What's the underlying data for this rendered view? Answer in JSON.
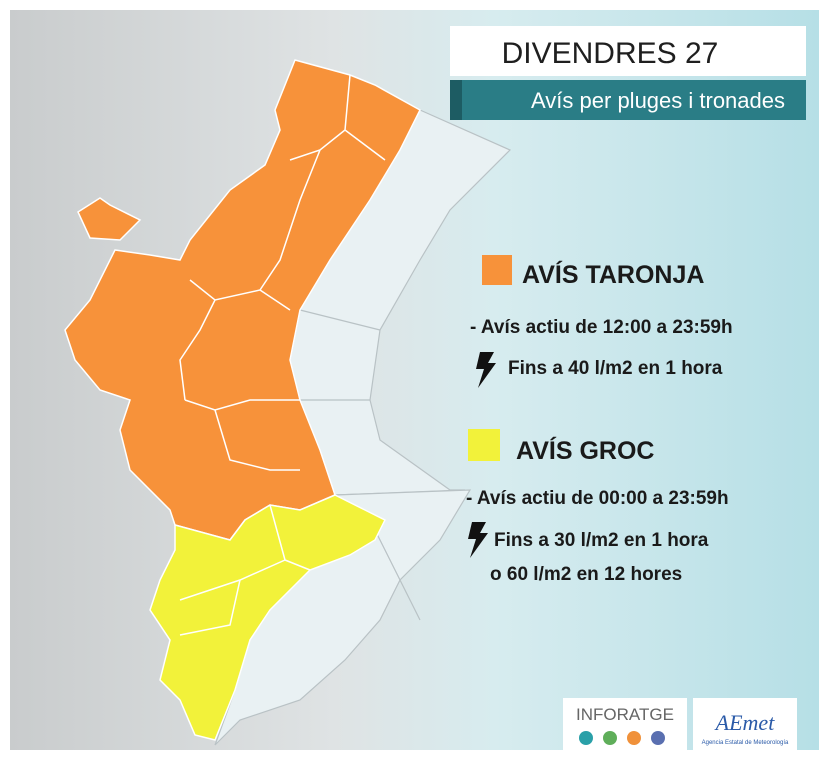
{
  "header": {
    "title": "DIVENDRES 27",
    "subtitle": "Avís per pluges i tronades"
  },
  "warnings": [
    {
      "label": "AVÍS TARONJA",
      "period": "- Avís actiu de 12:00 a 23:59h",
      "lines": [
        "Fins a 40 l/m2 en 1 hora"
      ]
    },
    {
      "label": "AVÍS GROC",
      "period": "- Avís actiu de 00:00 a 23:59h",
      "lines": [
        "Fins a 30 l/m2 en 1 hora",
        "o 60 l/m2 en 12 hores"
      ]
    }
  ],
  "logos": {
    "inforatge": "INFORATGE",
    "aemet": "AEmet",
    "aemet_subtitle": "Agencia Estatal de Meteorología"
  }
}
